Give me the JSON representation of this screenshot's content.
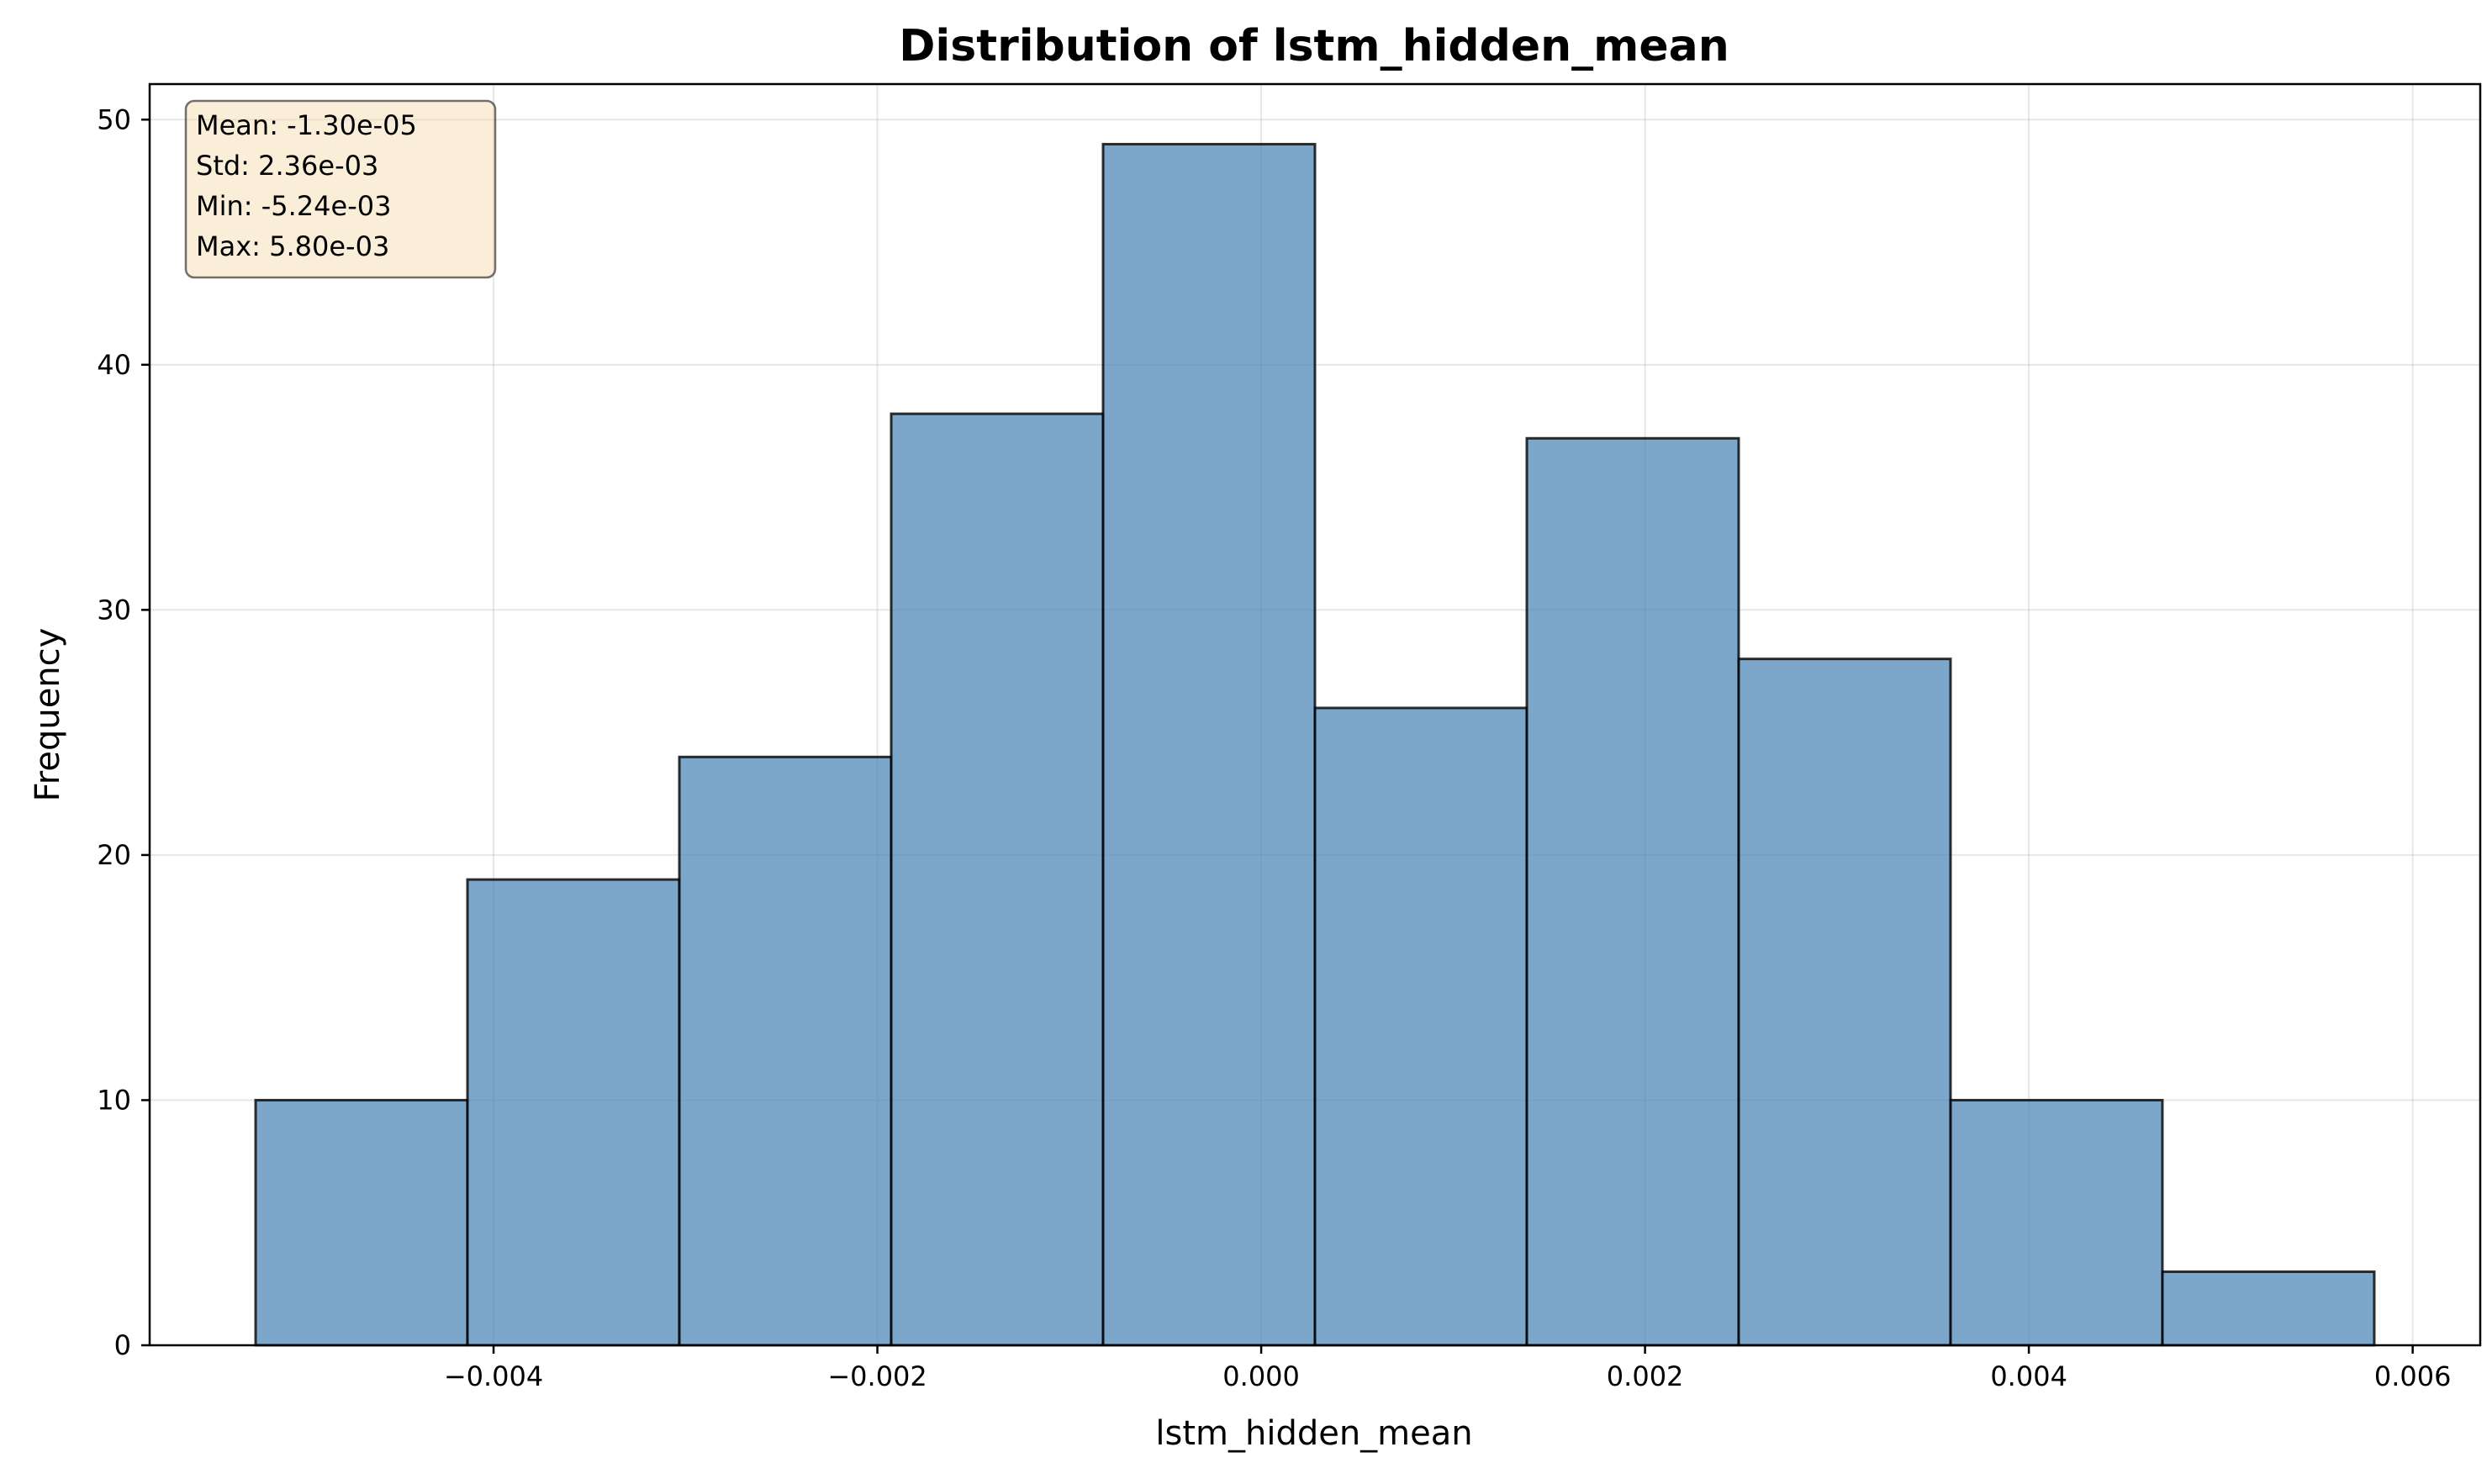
{
  "chart_data": {
    "type": "bar",
    "title": "Distribution of lstm_hidden_mean",
    "xlabel": "lstm_hidden_mean",
    "ylabel": "Frequency",
    "bin_edges": [
      -0.00524,
      -0.004136,
      -0.003032,
      -0.001928,
      -0.000824,
      0.00028,
      0.001384,
      0.002488,
      0.003592,
      0.004696,
      0.0058
    ],
    "values": [
      10,
      19,
      24,
      38,
      49,
      26,
      37,
      28,
      10,
      3
    ],
    "xlim": [
      -0.005792,
      0.006352
    ],
    "ylim": [
      0,
      51.45
    ],
    "xticks": [
      {
        "value": -0.004,
        "label": "−0.004"
      },
      {
        "value": -0.002,
        "label": "−0.002"
      },
      {
        "value": 0.0,
        "label": "0.000"
      },
      {
        "value": 0.002,
        "label": "0.002"
      },
      {
        "value": 0.004,
        "label": "0.004"
      },
      {
        "value": 0.006,
        "label": "0.006"
      }
    ],
    "yticks": [
      {
        "value": 0,
        "label": "0"
      },
      {
        "value": 10,
        "label": "10"
      },
      {
        "value": 20,
        "label": "20"
      },
      {
        "value": 30,
        "label": "30"
      },
      {
        "value": 40,
        "label": "40"
      },
      {
        "value": 50,
        "label": "50"
      }
    ],
    "grid": true,
    "bar_color": "#4682b4",
    "bar_alpha": 0.7,
    "edge_color": "#000000",
    "stats_box": {
      "position": "top-left",
      "lines": [
        "Mean: -1.30e-05",
        "Std: 2.36e-03",
        "Min: -5.24e-03",
        "Max: 5.80e-03"
      ],
      "background": "#f5deb3"
    }
  }
}
